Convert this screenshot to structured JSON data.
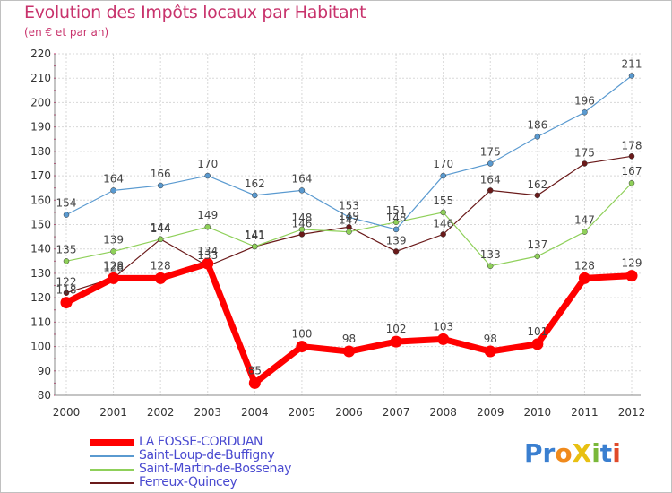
{
  "header": {
    "title": "Evolution des Impôts locaux par Habitant",
    "subtitle": "(en € et par an)"
  },
  "logo": {
    "text": "ProXiti",
    "letters": [
      "P",
      "r",
      "o",
      "X",
      "i",
      "t",
      "i"
    ],
    "colors": [
      "#3a7fd0",
      "#3a7fd0",
      "#f08a1c",
      "#e8c012",
      "#7ab83a",
      "#3a7fd0",
      "#e04a2a"
    ]
  },
  "chart_data": {
    "type": "line",
    "title": "Evolution des Impôts locaux par Habitant",
    "subtitle": "(en € et par an)",
    "xlabel": "",
    "ylabel": "",
    "ylim": [
      80,
      220
    ],
    "yticks": [
      80,
      90,
      100,
      110,
      120,
      130,
      140,
      150,
      160,
      170,
      180,
      190,
      200,
      210,
      220
    ],
    "grid": true,
    "legend_position": "bottom-left",
    "categories": [
      "2000",
      "2001",
      "2002",
      "2003",
      "2004",
      "2005",
      "2006",
      "2007",
      "2008",
      "2009",
      "2010",
      "2011",
      "2012"
    ],
    "series": [
      {
        "name": "Ferreux-Quincey",
        "color": "#6a1a1a",
        "values": [
          122,
          128,
          144,
          133,
          141,
          146,
          149,
          139,
          146,
          164,
          162,
          175,
          178
        ]
      },
      {
        "name": "Saint-Martin-de-Bossenay",
        "color": "#8fd05a",
        "values": [
          135,
          139,
          144,
          149,
          141,
          148,
          147,
          151,
          155,
          133,
          137,
          147,
          167
        ]
      },
      {
        "name": "Saint-Loup-de-Buffigny",
        "color": "#5a9ad0",
        "values": [
          154,
          164,
          166,
          170,
          162,
          164,
          153,
          148,
          170,
          175,
          186,
          196,
          211
        ]
      },
      {
        "name": "LA FOSSE-CORDUAN",
        "color": "#ff0000",
        "values": [
          118,
          128,
          128,
          134,
          85,
          100,
          98,
          102,
          103,
          98,
          101,
          128,
          129
        ]
      }
    ],
    "labels": {
      "Ferreux-Quincey": [
        "122",
        "128",
        "144",
        "133",
        "141",
        "146",
        "149",
        "139",
        "146",
        "164",
        "162",
        "175",
        "178"
      ],
      "Saint-Martin-de-Bossenay": [
        "135",
        "139",
        "144",
        "149",
        "141",
        "148",
        "147",
        "151",
        "155",
        "133",
        "137",
        "147",
        "167"
      ],
      "Saint-Loup-de-Buffigny": [
        "154",
        "164",
        "166",
        "170",
        "162",
        "164",
        "153",
        "148",
        "170",
        "175",
        "186",
        "196",
        "211"
      ],
      "LA FOSSE-CORDUAN": [
        "118",
        "128",
        "128",
        "134",
        "85",
        "100",
        "98",
        "102",
        "103",
        "98",
        "101",
        "128",
        "129"
      ]
    },
    "legend_order": [
      "LA FOSSE-CORDUAN",
      "Saint-Loup-de-Buffigny",
      "Saint-Martin-de-Bossenay",
      "Ferreux-Quincey"
    ]
  }
}
